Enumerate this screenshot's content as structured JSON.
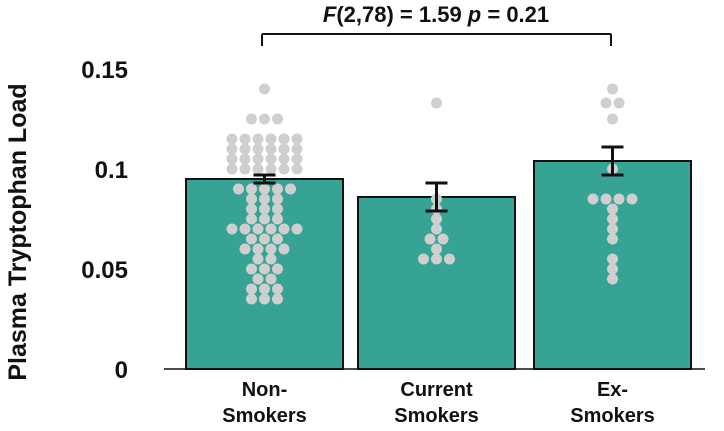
{
  "chart_data": {
    "type": "bar",
    "categories": [
      [
        "Non-",
        "Smokers"
      ],
      [
        "Current",
        "Smokers"
      ],
      [
        "Ex-",
        "Smokers"
      ]
    ],
    "values": [
      0.095,
      0.086,
      0.104
    ],
    "error": [
      0.002,
      0.007,
      0.007
    ],
    "ylabel": "Plasma Tryptophan Load",
    "ylim": [
      0,
      0.15
    ],
    "yticks": [
      "0",
      "0.05",
      "0.1",
      "0.15"
    ],
    "ytick_values": [
      0,
      0.05,
      0.1,
      0.15
    ],
    "annotation": {
      "f_symbol": "F",
      "f_stat": "(2,78) = 1.59 ",
      "p_symbol": "p",
      "p_stat": " = 0.21"
    },
    "bar_color": "#36a395",
    "point_color": "#cfcfcf",
    "points": [
      [
        0.14,
        0.125,
        0.125,
        0.125,
        0.115,
        0.115,
        0.115,
        0.115,
        0.115,
        0.115,
        0.11,
        0.11,
        0.11,
        0.11,
        0.11,
        0.11,
        0.105,
        0.105,
        0.105,
        0.105,
        0.105,
        0.105,
        0.1,
        0.1,
        0.1,
        0.1,
        0.1,
        0.1,
        0.09,
        0.09,
        0.09,
        0.09,
        0.09,
        0.085,
        0.085,
        0.085,
        0.08,
        0.08,
        0.08,
        0.075,
        0.075,
        0.075,
        0.07,
        0.07,
        0.07,
        0.07,
        0.07,
        0.07,
        0.065,
        0.065,
        0.065,
        0.06,
        0.06,
        0.06,
        0.06,
        0.055,
        0.055,
        0.05,
        0.05,
        0.05,
        0.045,
        0.045,
        0.04,
        0.04,
        0.04,
        0.035,
        0.035,
        0.035
      ],
      [
        0.133,
        0.085,
        0.08,
        0.075,
        0.07,
        0.065,
        0.065,
        0.06,
        0.055,
        0.055,
        0.055
      ],
      [
        0.14,
        0.133,
        0.133,
        0.125,
        0.1,
        0.085,
        0.085,
        0.085,
        0.085,
        0.08,
        0.075,
        0.07,
        0.065,
        0.055,
        0.05,
        0.045
      ]
    ]
  }
}
